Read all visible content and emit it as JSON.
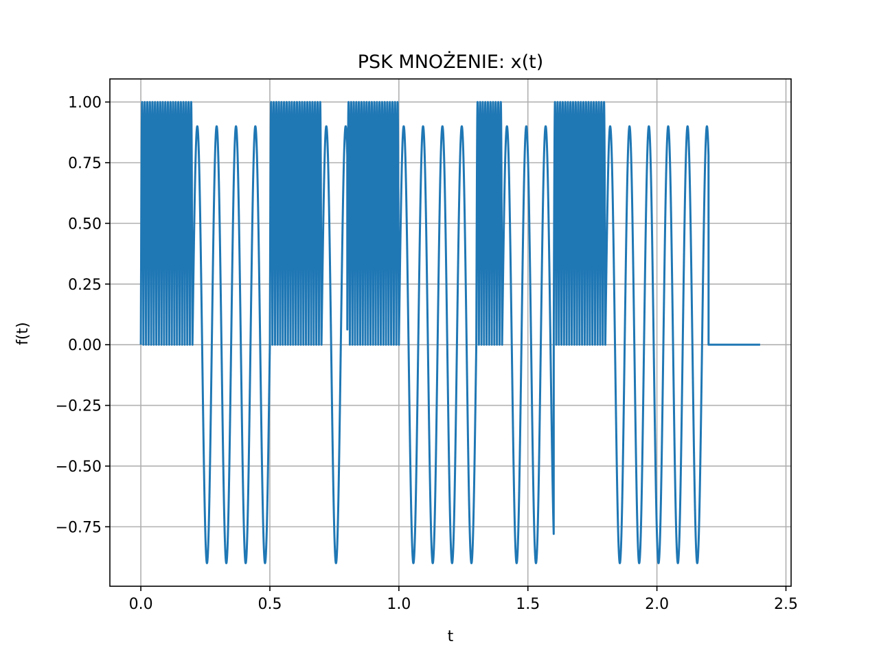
{
  "chart_data": {
    "type": "line",
    "title": "PSK MNOŻENIE: x(t)",
    "xlabel": "t",
    "ylabel": "f(t)",
    "xlim": [
      -0.12,
      2.52
    ],
    "ylim": [
      -0.995,
      1.095
    ],
    "grid": true,
    "x_ticks": [
      0.0,
      0.5,
      1.0,
      1.5,
      2.0,
      2.5
    ],
    "x_tick_labels": [
      "0.0",
      "0.5",
      "1.0",
      "1.5",
      "2.0",
      "2.5"
    ],
    "y_ticks": [
      1.0,
      0.75,
      0.5,
      0.25,
      0.0,
      -0.25,
      -0.5,
      -0.75
    ],
    "y_tick_labels": [
      "1.00",
      "0.75",
      "0.50",
      "0.25",
      "0.00",
      "−0.25",
      "−0.50",
      "−0.75"
    ],
    "series": [
      {
        "color": "#1f77b4",
        "segments": [
          {
            "t_start": 0.0,
            "t_end": 0.2,
            "bit": 1,
            "shape": "|sin| carrier, amplitude 1.00, 20 half-cycles"
          },
          {
            "t_start": 0.2,
            "t_end": 0.5,
            "bit": 0,
            "shape": "sinusoid, peaks 0.90 / -0.90, 4 cycles"
          },
          {
            "t_start": 0.5,
            "t_end": 0.7,
            "bit": 1,
            "shape": "|sin| carrier, amplitude 1.00"
          },
          {
            "t_start": 0.7,
            "t_end": 0.8,
            "bit": 0,
            "shape": "sinusoid, peaks 0.90 / -0.90"
          },
          {
            "t_start": 0.8,
            "t_end": 1.0,
            "bit": 1,
            "shape": "|sin| carrier, amplitude 1.00"
          },
          {
            "t_start": 1.0,
            "t_end": 1.3,
            "bit": 0,
            "shape": "sinusoid, peaks 0.90 / -0.90"
          },
          {
            "t_start": 1.3,
            "t_end": 1.4,
            "bit": 1,
            "shape": "|sin| carrier, amplitude 1.00"
          },
          {
            "t_start": 1.4,
            "t_end": 1.6,
            "bit": 0,
            "shape": "sinusoid, peaks 0.90 / -0.90"
          },
          {
            "t_start": 1.6,
            "t_end": 1.8,
            "bit": 1,
            "shape": "|sin| carrier, amplitude 1.00"
          },
          {
            "t_start": 1.8,
            "t_end": 2.2,
            "bit": 0,
            "shape": "sinusoid, peaks 0.90 / -0.90"
          },
          {
            "t_start": 2.2,
            "t_end": 2.4,
            "bit": null,
            "shape": "flat at 0.00"
          }
        ]
      }
    ]
  }
}
